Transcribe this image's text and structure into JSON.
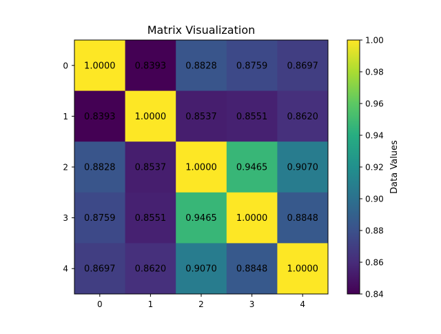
{
  "chart_data": {
    "type": "heatmap",
    "title": "Matrix Visualization",
    "xlabel": "",
    "ylabel": "",
    "x_ticks": [
      "0",
      "1",
      "2",
      "3",
      "4"
    ],
    "y_ticks": [
      "0",
      "1",
      "2",
      "3",
      "4"
    ],
    "values": [
      [
        1.0,
        0.8393,
        0.8828,
        0.8759,
        0.8697
      ],
      [
        0.8393,
        1.0,
        0.8537,
        0.8551,
        0.862
      ],
      [
        0.8828,
        0.8537,
        1.0,
        0.9465,
        0.907
      ],
      [
        0.8759,
        0.8551,
        0.9465,
        1.0,
        0.8848
      ],
      [
        0.8697,
        0.862,
        0.907,
        0.8848,
        1.0
      ]
    ],
    "cell_labels": [
      [
        "1.0000",
        "0.8393",
        "0.8828",
        "0.8759",
        "0.8697"
      ],
      [
        "0.8393",
        "1.0000",
        "0.8537",
        "0.8551",
        "0.8620"
      ],
      [
        "0.8828",
        "0.8537",
        "1.0000",
        "0.9465",
        "0.9070"
      ],
      [
        "0.8759",
        "0.8551",
        "0.9465",
        "1.0000",
        "0.8848"
      ],
      [
        "0.8697",
        "0.8620",
        "0.9070",
        "0.8848",
        "1.0000"
      ]
    ],
    "colormap": "viridis",
    "colorbar": {
      "label": "Data Values",
      "range": [
        0.84,
        1.0
      ],
      "ticks": [
        0.84,
        0.86,
        0.88,
        0.9,
        0.92,
        0.94,
        0.96,
        0.98,
        1.0
      ],
      "tick_labels": [
        "0.84",
        "0.86",
        "0.88",
        "0.90",
        "0.92",
        "0.94",
        "0.96",
        "0.98",
        "1.00"
      ]
    },
    "grid": false
  }
}
